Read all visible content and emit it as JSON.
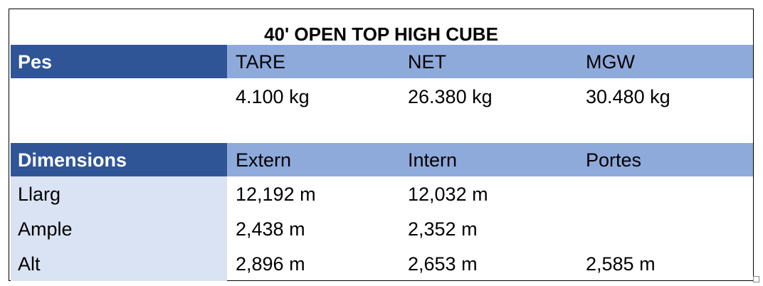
{
  "title": "40' OPEN TOP HIGH CUBE",
  "sections": [
    {
      "header": [
        "Pes",
        "TARE",
        "NET",
        "MGW"
      ],
      "rows": [
        {
          "cells": [
            "4.100 kg",
            "26.380 kg",
            "30.480 kg"
          ]
        }
      ]
    },
    {
      "header": [
        "Dimensions",
        "Extern",
        "Intern",
        "Portes"
      ],
      "rows": [
        {
          "label": "Llarg",
          "cells": [
            "12,192 m",
            "12,032 m"
          ]
        },
        {
          "label": "Ample",
          "cells": [
            "2,438 m",
            "2,352 m"
          ]
        },
        {
          "label": "Alt",
          "cells": [
            "2,896 m",
            "2,653 m",
            "2,585 m"
          ]
        }
      ]
    }
  ]
}
